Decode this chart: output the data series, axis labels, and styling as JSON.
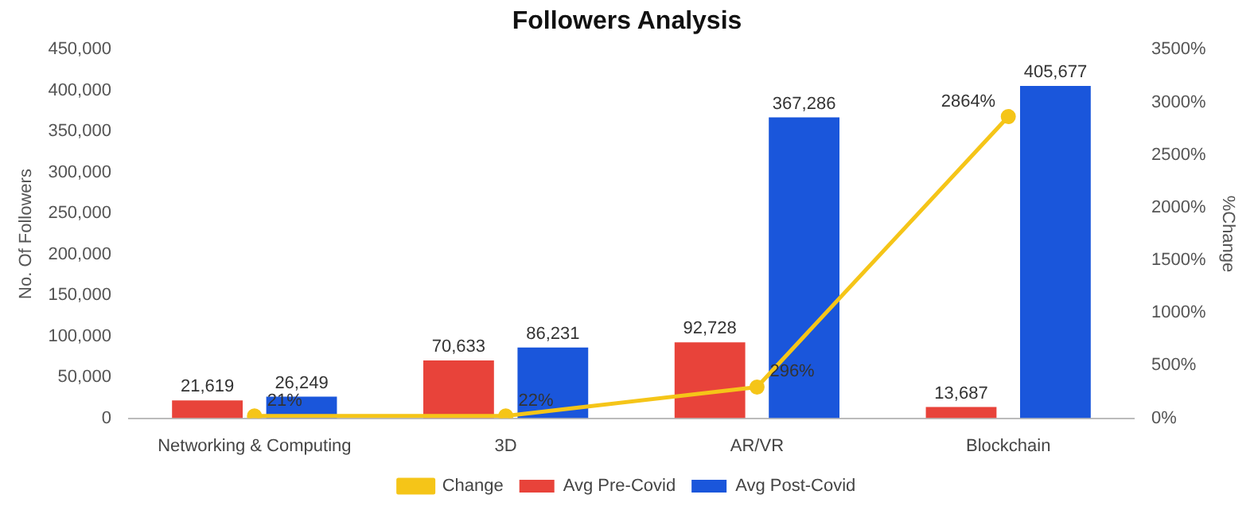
{
  "chart_data": {
    "type": "bar",
    "title": "Followers Analysis",
    "ylabel": "No. Of Followers",
    "y2label": "%Change",
    "categories": [
      "Networking & Computing",
      "3D",
      "AR/VR",
      "Blockchain"
    ],
    "series": [
      {
        "name": "Avg Pre-Covid",
        "color": "#e8433a",
        "values": [
          21619,
          70633,
          92728,
          13687
        ],
        "value_labels": [
          "21,619",
          "70,633",
          "92,728",
          "13,687"
        ]
      },
      {
        "name": "Avg Post-Covid",
        "color": "#1a56db",
        "values": [
          26249,
          86231,
          367286,
          405677
        ],
        "value_labels": [
          "26,249",
          "86,231",
          "367,286",
          "405,677"
        ]
      },
      {
        "name": "Change",
        "type": "line",
        "axis": "y2",
        "color": "#f5c518",
        "marker": "circle",
        "values": [
          21,
          22,
          296,
          2864
        ],
        "value_labels": [
          "21%",
          "22%",
          "296%",
          "2864%"
        ]
      }
    ],
    "ylim": [
      0,
      450000
    ],
    "yticks": [
      {
        "value": 0,
        "label": "0"
      },
      {
        "value": 50000,
        "label": "50,000"
      },
      {
        "value": 100000,
        "label": "100,000"
      },
      {
        "value": 150000,
        "label": "150,000"
      },
      {
        "value": 200000,
        "label": "200,000"
      },
      {
        "value": 250000,
        "label": "250,000"
      },
      {
        "value": 300000,
        "label": "300,000"
      },
      {
        "value": 350000,
        "label": "350,000"
      },
      {
        "value": 400000,
        "label": "400,000"
      },
      {
        "value": 450000,
        "label": "450,000"
      }
    ],
    "y2lim": [
      0,
      3500
    ],
    "y2ticks": [
      {
        "value": 0,
        "label": "0%"
      },
      {
        "value": 500,
        "label": "500%"
      },
      {
        "value": 1000,
        "label": "1000%"
      },
      {
        "value": 1500,
        "label": "1500%"
      },
      {
        "value": 2000,
        "label": "2000%"
      },
      {
        "value": 2500,
        "label": "2500%"
      },
      {
        "value": 3000,
        "label": "3000%"
      },
      {
        "value": 3500,
        "label": "3500%"
      }
    ],
    "legend": "bottom"
  }
}
